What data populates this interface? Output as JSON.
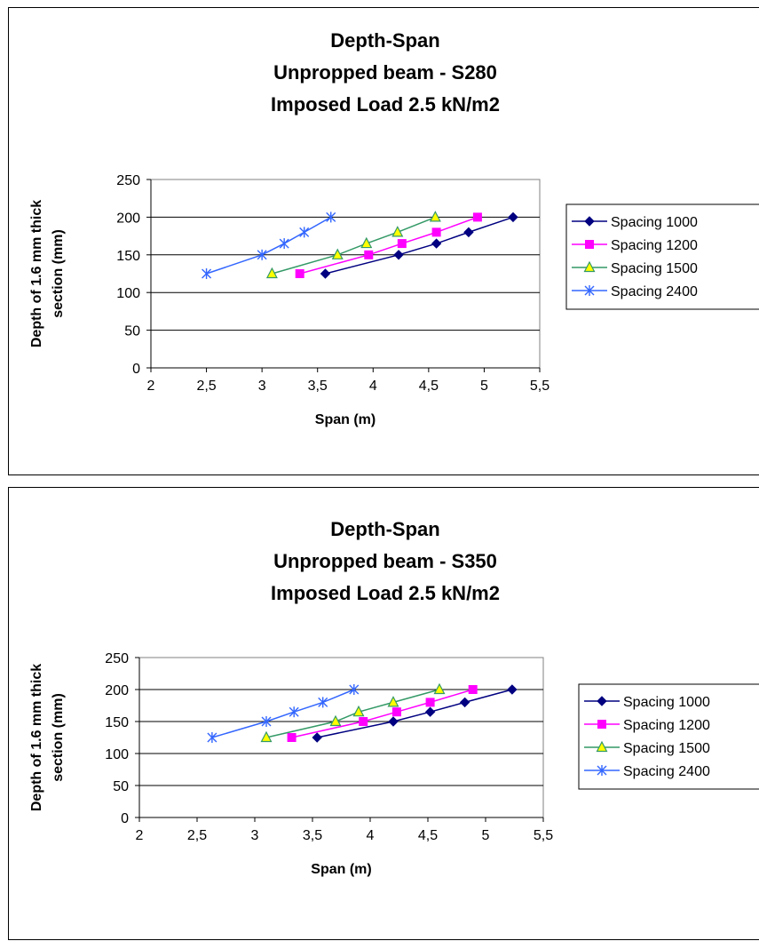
{
  "chart_data": [
    {
      "type": "line",
      "title": [
        "Depth-Span",
        "Unpropped beam - S280",
        "Imposed Load 2.5 kN/m2"
      ],
      "xlabel": "Span (m)",
      "ylabel": [
        "Depth of 1.6 mm thick",
        "section (mm)"
      ],
      "xlim": [
        2,
        5.5
      ],
      "ylim": [
        0,
        250
      ],
      "x_ticks": [
        "2",
        "2,5",
        "3",
        "3,5",
        "4",
        "4,5",
        "5",
        "5,5"
      ],
      "y_ticks": [
        "0",
        "50",
        "100",
        "150",
        "200",
        "250"
      ],
      "grid": "horizontal",
      "legend_position": "right",
      "series": [
        {
          "name": "Spacing 1000",
          "color": "#000080",
          "marker": "diamond",
          "x": [
            3.57,
            4.23,
            4.57,
            4.86,
            5.26
          ],
          "y": [
            125,
            150,
            165,
            180,
            200
          ]
        },
        {
          "name": "Spacing 1200",
          "color": "#ff00ff",
          "marker": "square",
          "x": [
            3.34,
            3.96,
            4.26,
            4.57,
            4.94
          ],
          "y": [
            125,
            150,
            165,
            180,
            200
          ]
        },
        {
          "name": "Spacing 1500",
          "color": "#339966",
          "marker": "triangle",
          "marker_fill": "#ffff00",
          "x": [
            3.09,
            3.68,
            3.94,
            4.22,
            4.56
          ],
          "y": [
            125,
            150,
            165,
            180,
            200
          ]
        },
        {
          "name": "Spacing 2400",
          "color": "#3366ff",
          "marker": "star",
          "x": [
            2.5,
            3.0,
            3.2,
            3.38,
            3.62
          ],
          "y": [
            125,
            150,
            165,
            180,
            200
          ]
        }
      ]
    },
    {
      "type": "line",
      "title": [
        "Depth-Span",
        "Unpropped beam - S350",
        "Imposed Load 2.5 kN/m2"
      ],
      "xlabel": "Span (m)",
      "ylabel": [
        "Depth of 1.6 mm thick",
        "section (mm)"
      ],
      "xlim": [
        2,
        5.5
      ],
      "ylim": [
        0,
        250
      ],
      "x_ticks": [
        "2",
        "2,5",
        "3",
        "3,5",
        "4",
        "4,5",
        "5",
        "5,5"
      ],
      "y_ticks": [
        "0",
        "50",
        "100",
        "150",
        "200",
        "250"
      ],
      "grid": "horizontal",
      "legend_position": "right",
      "series": [
        {
          "name": "Spacing 1000",
          "color": "#000080",
          "marker": "diamond",
          "x": [
            3.54,
            4.2,
            4.52,
            4.82,
            5.23
          ],
          "y": [
            125,
            150,
            165,
            180,
            200
          ]
        },
        {
          "name": "Spacing 1200",
          "color": "#ff00ff",
          "marker": "square",
          "x": [
            3.32,
            3.94,
            4.23,
            4.52,
            4.89
          ],
          "y": [
            125,
            150,
            165,
            180,
            200
          ]
        },
        {
          "name": "Spacing 1500",
          "color": "#339966",
          "marker": "triangle",
          "marker_fill": "#ffff00",
          "x": [
            3.1,
            3.7,
            3.9,
            4.2,
            4.6
          ],
          "y": [
            125,
            150,
            165,
            180,
            200
          ]
        },
        {
          "name": "Spacing 2400",
          "color": "#3366ff",
          "marker": "star",
          "x": [
            2.63,
            3.1,
            3.34,
            3.59,
            3.86
          ],
          "y": [
            125,
            150,
            165,
            180,
            200
          ]
        }
      ]
    }
  ]
}
